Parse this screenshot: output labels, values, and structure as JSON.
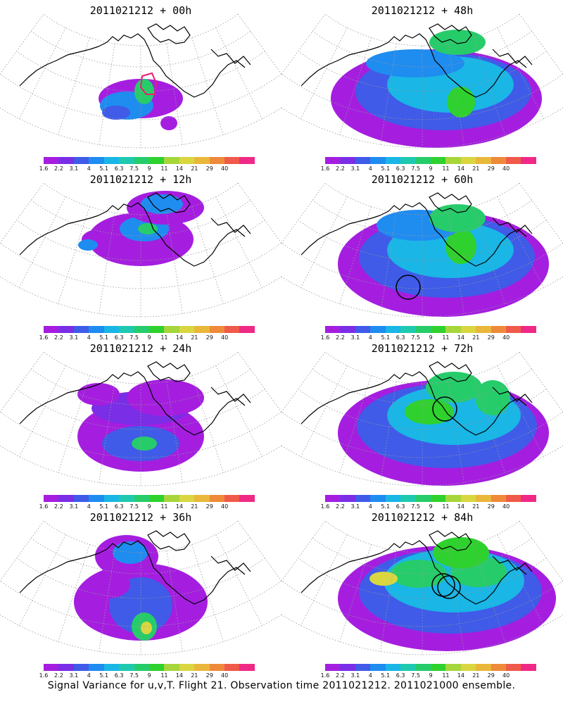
{
  "caption": "Signal Variance for u,v,T. Flight 21. Observation time 2011021212. 2011021000 ensemble.",
  "colorbar": {
    "labels": [
      "1.6",
      "2.2",
      "3.1",
      "4",
      "5.1",
      "6.3",
      "7.5",
      "9",
      "11",
      "14",
      "21",
      "29",
      "40"
    ],
    "colors": [
      "#a51ee0",
      "#7a2ee6",
      "#3f5be8",
      "#1f8cf0",
      "#19b6e6",
      "#1fc9b0",
      "#27cc6a",
      "#2fd12e",
      "#a6d63a",
      "#d9d640",
      "#e9b73a",
      "#ee8a3a",
      "#ef5a4a",
      "#ef2a86"
    ]
  },
  "chart_data": [
    {
      "type": "heatmap",
      "title": "2011021212 + 00h",
      "colorbar_levels": [
        1.6,
        2.2,
        3.1,
        4,
        5.1,
        6.3,
        7.5,
        9,
        11,
        14,
        21,
        29,
        40
      ],
      "max_level_shown": "6.3",
      "features": [
        "red polygon outline over western Alaska"
      ]
    },
    {
      "type": "heatmap",
      "title": "2011021212 + 12h",
      "colorbar_levels": [
        1.6,
        2.2,
        3.1,
        4,
        5.1,
        6.3,
        7.5,
        9,
        11,
        14,
        21,
        29,
        40
      ],
      "max_level_shown": "7.5",
      "features": []
    },
    {
      "type": "heatmap",
      "title": "2011021212 + 24h",
      "colorbar_levels": [
        1.6,
        2.2,
        3.1,
        4,
        5.1,
        6.3,
        7.5,
        9,
        11,
        14,
        21,
        29,
        40
      ],
      "max_level_shown": "9",
      "features": []
    },
    {
      "type": "heatmap",
      "title": "2011021212 + 36h",
      "colorbar_levels": [
        1.6,
        2.2,
        3.1,
        4,
        5.1,
        6.3,
        7.5,
        9,
        11,
        14,
        21,
        29,
        40
      ],
      "max_level_shown": "14",
      "features": []
    },
    {
      "type": "heatmap",
      "title": "2011021212 + 48h",
      "colorbar_levels": [
        1.6,
        2.2,
        3.1,
        4,
        5.1,
        6.3,
        7.5,
        9,
        11,
        14,
        21,
        29,
        40
      ],
      "max_level_shown": "11",
      "features": []
    },
    {
      "type": "heatmap",
      "title": "2011021212 + 60h",
      "colorbar_levels": [
        1.6,
        2.2,
        3.1,
        4,
        5.1,
        6.3,
        7.5,
        9,
        11,
        14,
        21,
        29,
        40
      ],
      "max_level_shown": "11",
      "features": [
        "black circle marker over the Gulf of Alaska"
      ]
    },
    {
      "type": "heatmap",
      "title": "2011021212 + 72h",
      "colorbar_levels": [
        1.6,
        2.2,
        3.1,
        4,
        5.1,
        6.3,
        7.5,
        9,
        11,
        14,
        21,
        29,
        40
      ],
      "max_level_shown": "11",
      "features": [
        "black circle marker near the coast"
      ]
    },
    {
      "type": "heatmap",
      "title": "2011021212 + 84h",
      "colorbar_levels": [
        1.6,
        2.2,
        3.1,
        4,
        5.1,
        6.3,
        7.5,
        9,
        11,
        14,
        21,
        29,
        40
      ],
      "max_level_shown": "14",
      "features": [
        "two overlapping black circle markers near the coast"
      ]
    }
  ]
}
